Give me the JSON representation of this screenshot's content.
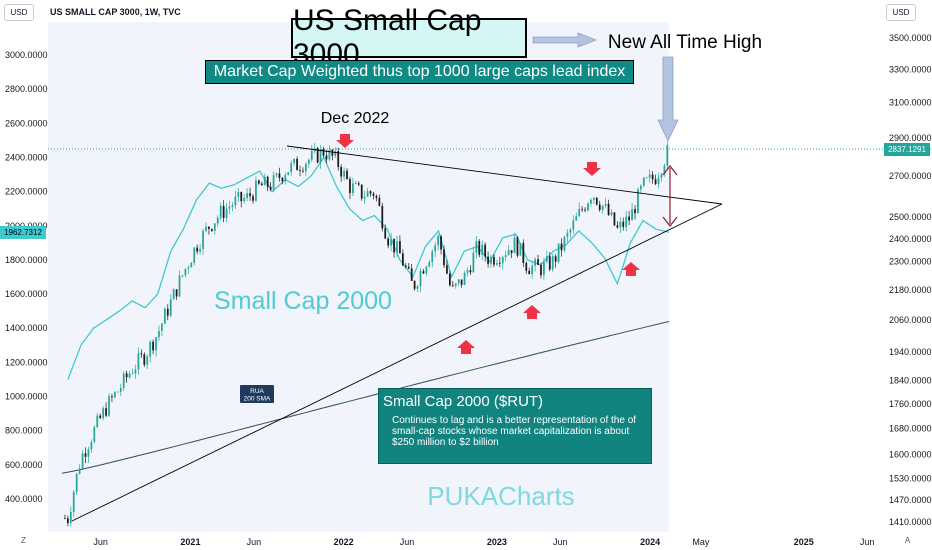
{
  "header": {
    "usd_left": "USD",
    "usd_right": "USD",
    "symbol_title": "US SMALL CAP 3000, 1W, TVC"
  },
  "annotations": {
    "main_title": "US Small Cap 3000",
    "subtitle": "Market Cap Weighted thus top 1000 large caps lead index",
    "ath_label": "New All Time High",
    "dec_label": "Dec 2022",
    "small_cap_label": "Small Cap 2000",
    "rua_sma_label": [
      "RUA",
      "200 SMA"
    ],
    "info_title": "Small Cap 2000 ($RUT)",
    "info_body": "Continues to lag and is a better representation of the of small-cap stocks whose market capitalization is about $250 million to $2 billion",
    "watermark": "PUKACharts"
  },
  "badges": {
    "left_value": "1962.7312",
    "right_value": "2837.1291"
  },
  "footer": {
    "z_button": "Z",
    "a_button": "A"
  },
  "colors": {
    "candle_up": "#26a69a",
    "candle_down": "#1a1a1a",
    "rut_line": "#3fc9d1",
    "sma_line": "#2c4e64",
    "trendline": "#000000",
    "arrow_red": "#ef3346",
    "ath_dotted": "#26a69a",
    "title_bg": "#d4f6f5",
    "box_teal": "#11847f",
    "watermark": "#63d4de"
  },
  "chart_data": {
    "type": "line",
    "title": "US SMALL CAP 3000, 1W, TVC",
    "left_axis": {
      "label": "USD",
      "ticks": [
        "3000.0000",
        "2800.0000",
        "2600.0000",
        "2400.0000",
        "2200.0000",
        "2000.0000",
        "1800.0000",
        "1600.0000",
        "1400.0000",
        "1200.0000",
        "1000.0000",
        "800.0000",
        "600.0000",
        "400.0000"
      ],
      "ylim": [
        300,
        3150
      ]
    },
    "right_axis": {
      "label": "USD",
      "scale": "log",
      "ticks": [
        "3500.0000",
        "3300.0000",
        "3100.0000",
        "2900.0000",
        "2700.0000",
        "2500.0000",
        "2400.0000",
        "2300.0000",
        "2180.0000",
        "2060.0000",
        "1940.0000",
        "1840.0000",
        "1760.0000",
        "1680.0000",
        "1600.0000",
        "1530.0000",
        "1470.0000",
        "1410.0000"
      ],
      "ylim": [
        1380,
        3700
      ]
    },
    "x_ticks": [
      "Jun",
      "2021",
      "Jun",
      "2022",
      "Jun",
      "2023",
      "Jun",
      "2024",
      "May",
      "2025",
      "Jun"
    ],
    "series": [
      {
        "name": "US SMALL CAP 3000",
        "axis": "right",
        "x": [
          "2020-03",
          "2020-04",
          "2020-05",
          "2020-06",
          "2020-07",
          "2020-08",
          "2020-09",
          "2020-10",
          "2020-11",
          "2020-12",
          "2021-01",
          "2021-02",
          "2021-03",
          "2021-04",
          "2021-05",
          "2021-06",
          "2021-07",
          "2021-08",
          "2021-09",
          "2021-10",
          "2021-11",
          "2021-12",
          "2022-01",
          "2022-02",
          "2022-03",
          "2022-04",
          "2022-05",
          "2022-06",
          "2022-07",
          "2022-08",
          "2022-09",
          "2022-10",
          "2022-11",
          "2022-12",
          "2023-01",
          "2023-02",
          "2023-03",
          "2023-04",
          "2023-05",
          "2023-06",
          "2023-07",
          "2023-08",
          "2023-09",
          "2023-10",
          "2023-11",
          "2023-12",
          "2024-01",
          "2024-02"
        ],
        "values": [
          1420,
          1590,
          1670,
          1750,
          1810,
          1880,
          1930,
          2010,
          2130,
          2250,
          2370,
          2460,
          2520,
          2570,
          2590,
          2650,
          2660,
          2730,
          2760,
          2790,
          2830,
          2780,
          2650,
          2610,
          2620,
          2410,
          2330,
          2190,
          2300,
          2400,
          2170,
          2230,
          2360,
          2310,
          2340,
          2380,
          2280,
          2270,
          2300,
          2400,
          2510,
          2620,
          2540,
          2440,
          2500,
          2650,
          2700,
          2840
        ]
      },
      {
        "name": "Small Cap 2000 ($RUT)",
        "axis": "left",
        "x": [
          "2020-03",
          "2020-04",
          "2020-05",
          "2020-06",
          "2020-07",
          "2020-08",
          "2020-09",
          "2020-10",
          "2020-11",
          "2020-12",
          "2021-01",
          "2021-02",
          "2021-03",
          "2021-04",
          "2021-05",
          "2021-06",
          "2021-07",
          "2021-08",
          "2021-09",
          "2021-10",
          "2021-11",
          "2021-12",
          "2022-01",
          "2022-02",
          "2022-03",
          "2022-04",
          "2022-05",
          "2022-06",
          "2022-07",
          "2022-08",
          "2022-09",
          "2022-10",
          "2022-11",
          "2022-12",
          "2023-01",
          "2023-02",
          "2023-03",
          "2023-04",
          "2023-05",
          "2023-06",
          "2023-07",
          "2023-08",
          "2023-09",
          "2023-10",
          "2023-11",
          "2023-12",
          "2024-01",
          "2024-02"
        ],
        "values": [
          1100,
          1300,
          1400,
          1450,
          1500,
          1560,
          1520,
          1600,
          1850,
          1980,
          2150,
          2250,
          2220,
          2240,
          2280,
          2320,
          2200,
          2270,
          2230,
          2290,
          2400,
          2230,
          2100,
          2030,
          2060,
          1980,
          1800,
          1700,
          1880,
          1970,
          1700,
          1850,
          1880,
          1790,
          1930,
          1950,
          1800,
          1770,
          1850,
          1890,
          1970,
          1900,
          1810,
          1660,
          1900,
          2030,
          1980,
          1962.7312
        ]
      }
    ],
    "reference_lines": [
      {
        "name": "RUA 200 SMA",
        "axis": "right"
      },
      {
        "name": "resistance trendline"
      },
      {
        "name": "support trendline"
      }
    ]
  }
}
